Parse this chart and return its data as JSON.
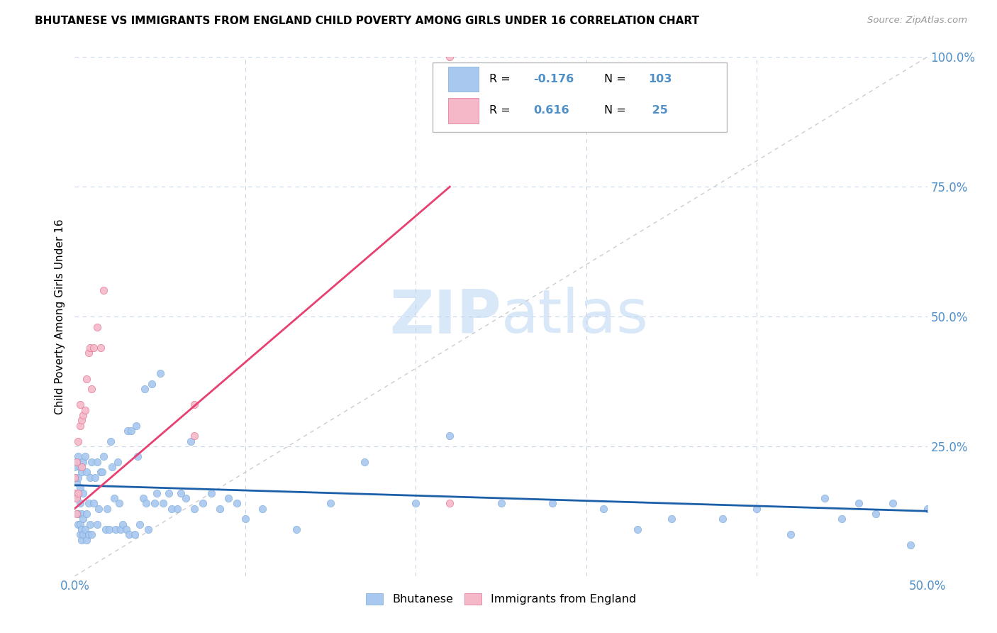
{
  "title": "BHUTANESE VS IMMIGRANTS FROM ENGLAND CHILD POVERTY AMONG GIRLS UNDER 16 CORRELATION CHART",
  "source": "Source: ZipAtlas.com",
  "ylabel": "Child Poverty Among Girls Under 16",
  "legend_label1": "Bhutanese",
  "legend_label2": "Immigrants from England",
  "R1": "-0.176",
  "N1": "103",
  "R2": "0.616",
  "N2": "25",
  "color_blue": "#A8C8F0",
  "color_blue_edge": "#7AAAD8",
  "color_pink": "#F5B8C8",
  "color_pink_edge": "#E07090",
  "color_line_blue": "#1B5FA8",
  "color_line_pink": "#E84070",
  "color_diag": "#CCCCCC",
  "color_grid": "#C8D4E8",
  "color_tick": "#5090C8",
  "watermark_color": "#D8E8F8",
  "xlim": [
    0.0,
    0.5
  ],
  "ylim": [
    0.0,
    1.0
  ],
  "blue_line_y0": 0.175,
  "blue_line_y1": 0.125,
  "pink_line_x0": 0.0,
  "pink_line_y0": 0.13,
  "pink_line_x1": 0.22,
  "pink_line_y1": 0.75,
  "blue_x": [
    0.0,
    0.0,
    0.001,
    0.001,
    0.001,
    0.002,
    0.002,
    0.002,
    0.002,
    0.003,
    0.003,
    0.003,
    0.003,
    0.003,
    0.004,
    0.004,
    0.004,
    0.004,
    0.005,
    0.005,
    0.005,
    0.005,
    0.006,
    0.006,
    0.007,
    0.007,
    0.007,
    0.008,
    0.008,
    0.009,
    0.009,
    0.01,
    0.01,
    0.011,
    0.012,
    0.013,
    0.013,
    0.014,
    0.015,
    0.016,
    0.017,
    0.018,
    0.019,
    0.02,
    0.021,
    0.022,
    0.023,
    0.024,
    0.025,
    0.026,
    0.027,
    0.028,
    0.03,
    0.031,
    0.032,
    0.033,
    0.035,
    0.036,
    0.037,
    0.038,
    0.04,
    0.041,
    0.042,
    0.043,
    0.045,
    0.047,
    0.048,
    0.05,
    0.052,
    0.055,
    0.057,
    0.06,
    0.062,
    0.065,
    0.068,
    0.07,
    0.075,
    0.08,
    0.085,
    0.09,
    0.095,
    0.1,
    0.11,
    0.13,
    0.15,
    0.17,
    0.2,
    0.22,
    0.25,
    0.28,
    0.31,
    0.33,
    0.35,
    0.38,
    0.4,
    0.42,
    0.45,
    0.47,
    0.49,
    0.5,
    0.48,
    0.46,
    0.44
  ],
  "blue_y": [
    0.19,
    0.21,
    0.15,
    0.18,
    0.22,
    0.1,
    0.12,
    0.19,
    0.23,
    0.08,
    0.1,
    0.14,
    0.17,
    0.21,
    0.07,
    0.09,
    0.12,
    0.2,
    0.08,
    0.11,
    0.16,
    0.22,
    0.09,
    0.23,
    0.07,
    0.12,
    0.2,
    0.08,
    0.14,
    0.1,
    0.19,
    0.08,
    0.22,
    0.14,
    0.19,
    0.1,
    0.22,
    0.13,
    0.2,
    0.2,
    0.23,
    0.09,
    0.13,
    0.09,
    0.26,
    0.21,
    0.15,
    0.09,
    0.22,
    0.14,
    0.09,
    0.1,
    0.09,
    0.28,
    0.08,
    0.28,
    0.08,
    0.29,
    0.23,
    0.1,
    0.15,
    0.36,
    0.14,
    0.09,
    0.37,
    0.14,
    0.16,
    0.39,
    0.14,
    0.16,
    0.13,
    0.13,
    0.16,
    0.15,
    0.26,
    0.13,
    0.14,
    0.16,
    0.13,
    0.15,
    0.14,
    0.11,
    0.13,
    0.09,
    0.14,
    0.22,
    0.14,
    0.27,
    0.14,
    0.14,
    0.13,
    0.09,
    0.11,
    0.11,
    0.13,
    0.08,
    0.11,
    0.12,
    0.06,
    0.13,
    0.14,
    0.14,
    0.15
  ],
  "pink_x": [
    0.0,
    0.0,
    0.001,
    0.001,
    0.001,
    0.002,
    0.002,
    0.003,
    0.003,
    0.004,
    0.004,
    0.005,
    0.006,
    0.007,
    0.008,
    0.009,
    0.01,
    0.011,
    0.013,
    0.015,
    0.017,
    0.07,
    0.07,
    0.22,
    0.22
  ],
  "pink_y": [
    0.16,
    0.19,
    0.12,
    0.15,
    0.22,
    0.16,
    0.26,
    0.29,
    0.33,
    0.3,
    0.21,
    0.31,
    0.32,
    0.38,
    0.43,
    0.44,
    0.36,
    0.44,
    0.48,
    0.44,
    0.55,
    0.27,
    0.33,
    0.14,
    1.0
  ]
}
